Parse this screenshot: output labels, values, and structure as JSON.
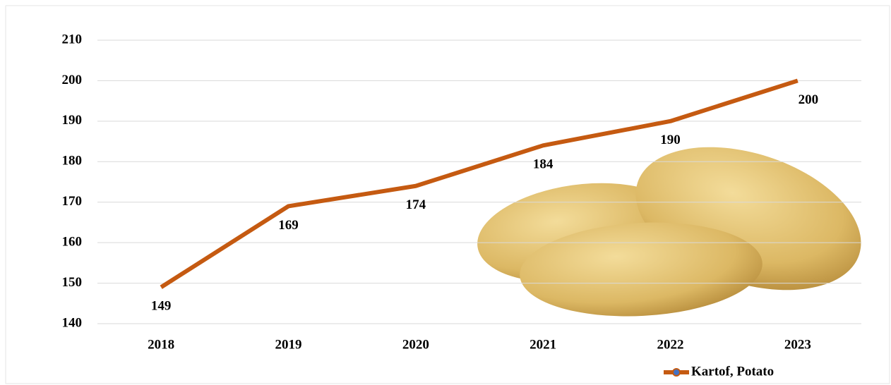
{
  "chart_data": {
    "type": "line",
    "categories": [
      "2018",
      "2019",
      "2020",
      "2021",
      "2022",
      "2023"
    ],
    "series": [
      {
        "name": "Kartof,  Potato",
        "color": "#c55a11",
        "values": [
          149,
          169,
          174,
          184,
          190,
          200
        ]
      }
    ],
    "ylim": [
      140,
      210
    ],
    "yticks": [
      140,
      150,
      160,
      170,
      180,
      190,
      200,
      210
    ],
    "grid": true,
    "legend": "bottom-right"
  }
}
